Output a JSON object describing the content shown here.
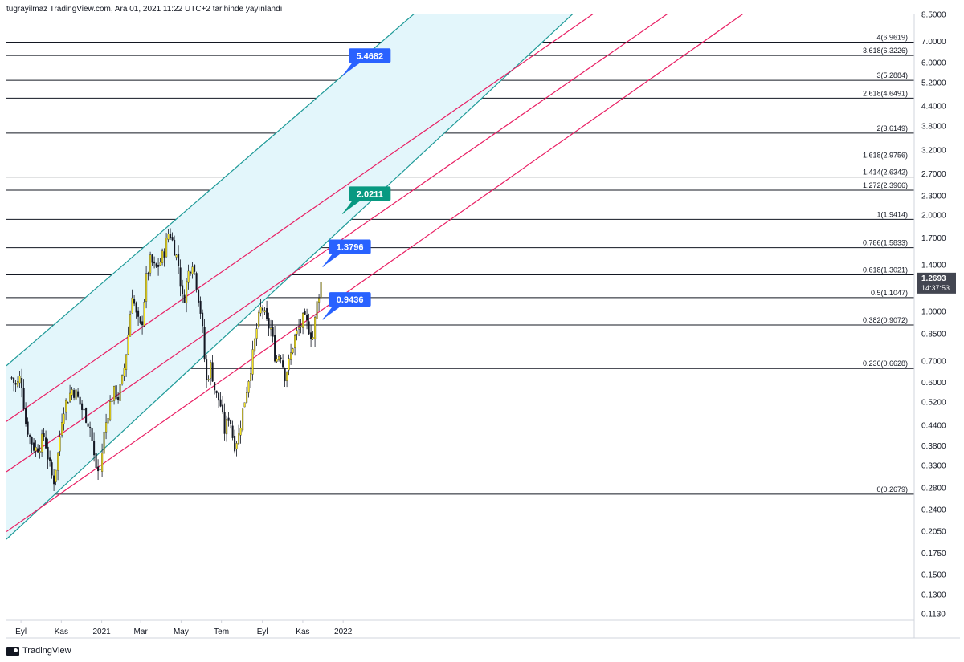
{
  "header": {
    "text": "tugrayilmaz TradingView.com, Ara 01, 2021 11:22 UTC+2 tarihinde yayınlandı"
  },
  "brand": {
    "name": "TradingView"
  },
  "chart_data": {
    "type": "candlestick",
    "y_scale": "log",
    "ylim": [
      0.108,
      8.5
    ],
    "y_ticks": [
      "8.5000",
      "7.0000",
      "6.0000",
      "5.2000",
      "4.4000",
      "3.8000",
      "3.2000",
      "2.7000",
      "2.3000",
      "2.0000",
      "1.7000",
      "1.4000",
      "1.2000",
      "1.0000",
      "0.8500",
      "0.7000",
      "0.6000",
      "0.5200",
      "0.4400",
      "0.3800",
      "0.3300",
      "0.2800",
      "0.2400",
      "0.2050",
      "0.1750",
      "0.1500",
      "0.1300",
      "0.1130"
    ],
    "x_ticks": [
      {
        "label": "Eyl",
        "date": "2020-09-01"
      },
      {
        "label": "Kas",
        "date": "2020-11-01"
      },
      {
        "label": "2021",
        "date": "2021-01-01"
      },
      {
        "label": "Mar",
        "date": "2021-03-01"
      },
      {
        "label": "May",
        "date": "2021-05-01"
      },
      {
        "label": "Tem",
        "date": "2021-07-01"
      },
      {
        "label": "Eyl",
        "date": "2021-09-01"
      },
      {
        "label": "Kas",
        "date": "2021-11-01"
      },
      {
        "label": "2022",
        "date": "2022-01-01"
      }
    ],
    "fib_levels": [
      {
        "ratio": "4",
        "value": 6.9619,
        "label": "4(6.9619)"
      },
      {
        "ratio": "3.618",
        "value": 6.3226,
        "label": "3.618(6.3226)"
      },
      {
        "ratio": "3",
        "value": 5.2884,
        "label": "3(5.2884)"
      },
      {
        "ratio": "2.618",
        "value": 4.6491,
        "label": "2.618(4.6491)"
      },
      {
        "ratio": "2",
        "value": 3.6149,
        "label": "2(3.6149)"
      },
      {
        "ratio": "1.618",
        "value": 2.9756,
        "label": "1.618(2.9756)"
      },
      {
        "ratio": "1.414",
        "value": 2.6342,
        "label": "1.414(2.6342)"
      },
      {
        "ratio": "1.272",
        "value": 2.3966,
        "label": "1.272(2.3966)"
      },
      {
        "ratio": "1",
        "value": 1.9414,
        "label": "1(1.9414)"
      },
      {
        "ratio": "0.786",
        "value": 1.5833,
        "label": "0.786(1.5833)"
      },
      {
        "ratio": "0.618",
        "value": 1.3021,
        "label": "0.618(1.3021)"
      },
      {
        "ratio": "0.5",
        "value": 1.1047,
        "label": "0.5(1.1047)"
      },
      {
        "ratio": "0.382",
        "value": 0.9072,
        "label": "0.382(0.9072)"
      },
      {
        "ratio": "0.236",
        "value": 0.6628,
        "label": "0.236(0.6628)"
      },
      {
        "ratio": "0",
        "value": 0.2679,
        "label": "0(0.2679)"
      }
    ],
    "callouts": [
      {
        "text": "5.4682",
        "color": "#2962ff",
        "date": "2021-12-31",
        "value": 5.4682
      },
      {
        "text": "2.0211",
        "color": "#089981",
        "date": "2021-12-31",
        "value": 2.0211
      },
      {
        "text": "1.3796",
        "color": "#2962ff",
        "date": "2021-12-01",
        "value": 1.3796
      },
      {
        "text": "0.9436",
        "color": "#2962ff",
        "date": "2021-12-01",
        "value": 0.9436
      }
    ],
    "current_price": {
      "value": "1.2693",
      "countdown": "14:37:53",
      "color": "#434651"
    },
    "channel_teal": {
      "upper": [
        [
          "2020-08-15",
          0.69
        ],
        [
          "2021-12-31",
          5.4682
        ]
      ],
      "lower": [
        [
          "2020-08-15",
          0.198
        ],
        [
          "2022-01-20",
          2.0
        ]
      ]
    },
    "channel_pink": {
      "upper": [
        [
          "2020-08-15",
          0.46
        ],
        [
          "2022-01-20",
          2.6
        ]
      ],
      "middle": [
        [
          "2020-08-15",
          0.32
        ],
        [
          "2022-01-20",
          1.8
        ]
      ],
      "lower": [
        [
          "2020-08-15",
          0.208
        ],
        [
          "2022-01-20",
          1.2
        ]
      ]
    },
    "price_path": [
      [
        "2020-08-18",
        0.62
      ],
      [
        "2020-08-25",
        0.58
      ],
      [
        "2020-09-01",
        0.63
      ],
      [
        "2020-09-08",
        0.45
      ],
      [
        "2020-09-15",
        0.4
      ],
      [
        "2020-09-22",
        0.37
      ],
      [
        "2020-09-29",
        0.38
      ],
      [
        "2020-10-06",
        0.41
      ],
      [
        "2020-10-13",
        0.34
      ],
      [
        "2020-10-20",
        0.29
      ],
      [
        "2020-10-27",
        0.36
      ],
      [
        "2020-11-03",
        0.49
      ],
      [
        "2020-11-10",
        0.53
      ],
      [
        "2020-11-17",
        0.57
      ],
      [
        "2020-11-24",
        0.55
      ],
      [
        "2020-12-01",
        0.5
      ],
      [
        "2020-12-08",
        0.47
      ],
      [
        "2020-12-15",
        0.43
      ],
      [
        "2020-12-22",
        0.33
      ],
      [
        "2020-12-29",
        0.31
      ],
      [
        "2021-01-05",
        0.42
      ],
      [
        "2021-01-12",
        0.5
      ],
      [
        "2021-01-19",
        0.56
      ],
      [
        "2021-01-26",
        0.54
      ],
      [
        "2021-02-02",
        0.62
      ],
      [
        "2021-02-09",
        0.8
      ],
      [
        "2021-02-16",
        1.15
      ],
      [
        "2021-02-23",
        0.95
      ],
      [
        "2021-03-02",
        0.88
      ],
      [
        "2021-03-09",
        1.25
      ],
      [
        "2021-03-16",
        1.45
      ],
      [
        "2021-03-23",
        1.35
      ],
      [
        "2021-03-30",
        1.42
      ],
      [
        "2021-04-06",
        1.55
      ],
      [
        "2021-04-13",
        1.8
      ],
      [
        "2021-04-20",
        1.6
      ],
      [
        "2021-04-27",
        1.4
      ],
      [
        "2021-05-04",
        1.05
      ],
      [
        "2021-05-11",
        1.3
      ],
      [
        "2021-05-18",
        1.45
      ],
      [
        "2021-05-25",
        1.2
      ],
      [
        "2021-06-01",
        0.95
      ],
      [
        "2021-06-08",
        0.6
      ],
      [
        "2021-06-15",
        0.68
      ],
      [
        "2021-06-22",
        0.55
      ],
      [
        "2021-06-29",
        0.52
      ],
      [
        "2021-07-06",
        0.42
      ],
      [
        "2021-07-13",
        0.48
      ],
      [
        "2021-07-20",
        0.38
      ],
      [
        "2021-07-27",
        0.41
      ],
      [
        "2021-08-03",
        0.5
      ],
      [
        "2021-08-10",
        0.6
      ],
      [
        "2021-08-17",
        0.72
      ],
      [
        "2021-08-24",
        0.9
      ],
      [
        "2021-08-31",
        1.05
      ],
      [
        "2021-09-07",
        0.92
      ],
      [
        "2021-09-14",
        0.88
      ],
      [
        "2021-09-21",
        0.7
      ],
      [
        "2021-09-28",
        0.75
      ],
      [
        "2021-10-05",
        0.63
      ],
      [
        "2021-10-12",
        0.7
      ],
      [
        "2021-10-19",
        0.82
      ],
      [
        "2021-10-26",
        0.88
      ],
      [
        "2021-11-02",
        0.95
      ],
      [
        "2021-11-09",
        0.9
      ],
      [
        "2021-11-16",
        0.82
      ],
      [
        "2021-11-23",
        1.08
      ],
      [
        "2021-11-30",
        1.27
      ]
    ]
  }
}
